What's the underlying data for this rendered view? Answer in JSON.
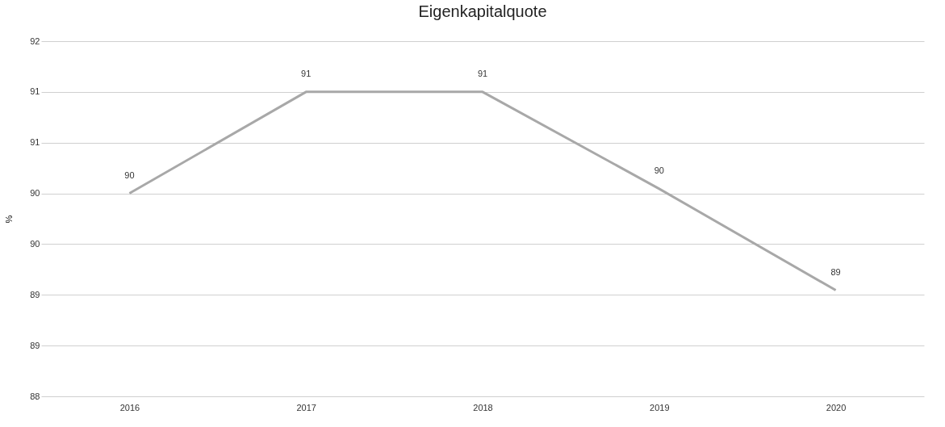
{
  "chart_data": {
    "type": "line",
    "title": "Eigenkapitalquote",
    "ylabel": "%",
    "categories": [
      "2016",
      "2017",
      "2018",
      "2019",
      "2020"
    ],
    "series": [
      {
        "color": "#a8a8a8",
        "values": [
          90.35,
          91.45,
          91.45,
          90.4,
          89.3
        ]
      }
    ],
    "value_labels": [
      "90",
      "91",
      "91",
      "90",
      "89"
    ],
    "ylim": [
      88.15,
      92
    ],
    "yticks": [
      {
        "value": 92,
        "label": "92"
      },
      {
        "value": 91.45,
        "label": "91"
      },
      {
        "value": 90.9,
        "label": "91"
      },
      {
        "value": 90.35,
        "label": "90"
      },
      {
        "value": 89.8,
        "label": "90"
      },
      {
        "value": 89.25,
        "label": "89"
      },
      {
        "value": 88.7,
        "label": "89"
      },
      {
        "value": 88.15,
        "label": "88"
      }
    ],
    "grid": "y",
    "marker": "none",
    "line_style": "solid"
  }
}
